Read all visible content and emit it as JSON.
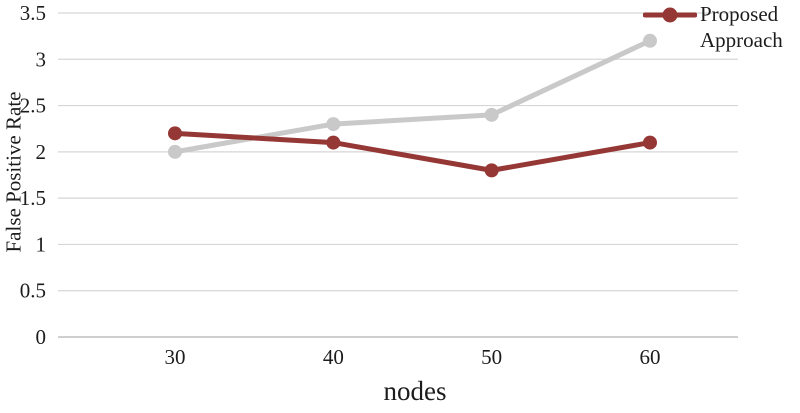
{
  "chart_data": {
    "type": "line",
    "title": "",
    "xlabel": "nodes",
    "ylabel": "False Positive Rate",
    "x": [
      "30",
      "40",
      "50",
      "60"
    ],
    "series": [
      {
        "name": "Proposed Approach",
        "color": "#953735",
        "values": [
          2.2,
          2.1,
          1.8,
          2.1
        ]
      },
      {
        "name": "",
        "color": "#C9C9C9",
        "values": [
          2.0,
          2.3,
          2.4,
          3.2
        ]
      }
    ],
    "ylim": [
      0,
      3.5
    ],
    "ytick_step": 0.5,
    "yticks": [
      "0",
      "0.5",
      "1",
      "1.5",
      "2",
      "2.5",
      "3",
      "3.5"
    ],
    "grid": true,
    "legend_position": "top-right",
    "grid_color": "#D6D6D6",
    "axis_color": "#BFBFBF",
    "text_color": "#1C1C1C"
  }
}
